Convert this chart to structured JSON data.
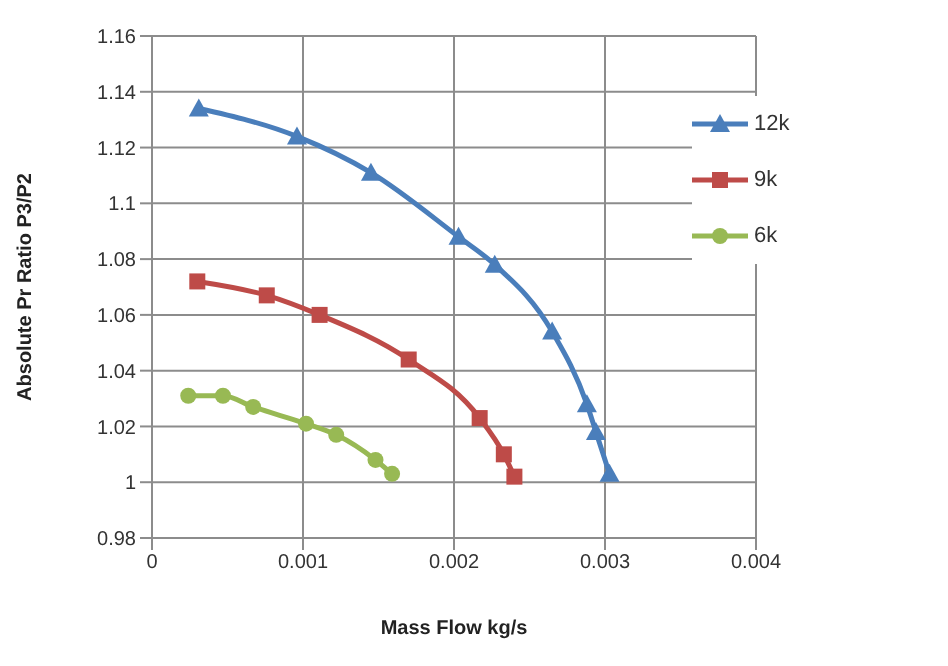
{
  "chart_data": {
    "type": "line",
    "xlabel": "Mass Flow kg/s",
    "ylabel": "Absolute Pr Ratio P3/P2",
    "xlim": [
      0,
      0.004
    ],
    "xticks": [
      0,
      0.001,
      0.002,
      0.003,
      0.004
    ],
    "ylim": [
      0.98,
      1.16
    ],
    "yticks": [
      0.98,
      1,
      1.02,
      1.04,
      1.06,
      1.08,
      1.1,
      1.12,
      1.14,
      1.16
    ],
    "grid": true,
    "legend": "top right",
    "line_style": "solid",
    "series": [
      {
        "name": "12k",
        "color": "#4a7ebb",
        "marker": "triangle",
        "x": [
          0.00031,
          0.00096,
          0.00145,
          0.00203,
          0.00227,
          0.00265,
          0.00288,
          0.00294,
          0.00303
        ],
        "values": [
          1.134,
          1.124,
          1.111,
          1.088,
          1.078,
          1.054,
          1.028,
          1.018,
          1.003
        ]
      },
      {
        "name": "9k",
        "color": "#be4b48",
        "marker": "square",
        "x": [
          0.0003,
          0.00076,
          0.00111,
          0.0017,
          0.00217,
          0.00233,
          0.0024
        ],
        "values": [
          1.072,
          1.067,
          1.06,
          1.044,
          1.023,
          1.01,
          1.002
        ]
      },
      {
        "name": "6k",
        "color": "#98b954",
        "marker": "circle",
        "x": [
          0.00024,
          0.00047,
          0.00067,
          0.00102,
          0.00122,
          0.00148,
          0.00159
        ],
        "values": [
          1.031,
          1.031,
          1.027,
          1.021,
          1.017,
          1.008,
          1.003
        ]
      }
    ]
  }
}
